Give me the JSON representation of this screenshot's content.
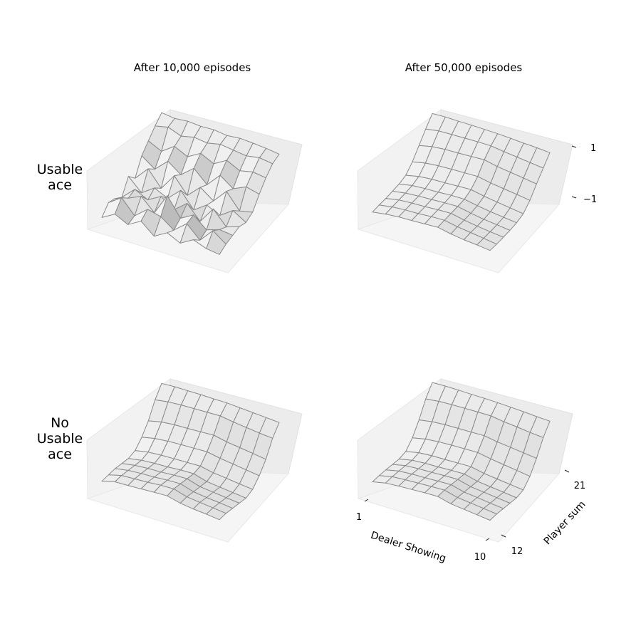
{
  "chart_data": {
    "type": "surface",
    "col_titles": [
      "After 10,000 episodes",
      "After 50,000 episodes"
    ],
    "row_labels": [
      [
        "Usable",
        "ace"
      ],
      [
        "No",
        "Usable",
        "ace"
      ]
    ],
    "x": {
      "label": "Dealer Showing",
      "range": [
        1,
        10
      ],
      "ticks": [
        1,
        10
      ]
    },
    "y": {
      "label": "Player sum",
      "range": [
        12,
        21
      ],
      "ticks": [
        12,
        21
      ]
    },
    "z": {
      "range": [
        -1,
        1
      ],
      "ticks": [
        1,
        -1
      ],
      "tick_labels": [
        "1",
        "−1"
      ]
    },
    "dealer": [
      1,
      2,
      3,
      4,
      5,
      6,
      7,
      8,
      9,
      10
    ],
    "player": [
      12,
      13,
      14,
      15,
      16,
      17,
      18,
      19,
      20,
      21
    ],
    "surfaces": [
      {
        "row": 0,
        "col": 0,
        "z": [
          [
            -0.8,
            -0.55,
            -0.75,
            -0.5,
            -0.85,
            -0.6,
            -0.8,
            -0.55,
            -0.7,
            -0.75
          ],
          [
            -0.5,
            -0.2,
            -0.65,
            -0.3,
            -0.4,
            -0.7,
            -0.35,
            -0.75,
            -0.3,
            -0.6
          ],
          [
            -0.55,
            -0.4,
            -0.2,
            -0.6,
            0.1,
            -0.5,
            -0.25,
            -0.6,
            -0.45,
            -0.5
          ],
          [
            -0.7,
            -0.3,
            -0.5,
            -0.25,
            -0.55,
            -0.2,
            -0.65,
            -0.1,
            -0.55,
            -0.4
          ],
          [
            -0.2,
            -0.6,
            -0.3,
            -0.5,
            -0.1,
            -0.6,
            -0.3,
            -0.5,
            -0.2,
            -0.45
          ],
          [
            -0.45,
            0.0,
            -0.5,
            0.05,
            -0.45,
            -0.05,
            -0.35,
            0.1,
            -0.4,
            -0.3
          ],
          [
            0.1,
            -0.2,
            0.2,
            -0.1,
            0.25,
            -0.15,
            0.3,
            0.0,
            0.2,
            0.1
          ],
          [
            0.4,
            0.2,
            0.5,
            0.3,
            0.55,
            0.35,
            0.6,
            0.4,
            0.5,
            0.45
          ],
          [
            0.7,
            0.8,
            0.65,
            0.75,
            0.7,
            0.8,
            0.75,
            0.7,
            0.78,
            0.72
          ],
          [
            0.95,
            0.9,
            0.95,
            0.92,
            0.95,
            0.9,
            0.95,
            0.93,
            0.9,
            0.85
          ]
        ]
      },
      {
        "row": 0,
        "col": 1,
        "z": [
          [
            -0.62,
            -0.55,
            -0.5,
            -0.48,
            -0.45,
            -0.42,
            -0.5,
            -0.55,
            -0.58,
            -0.62
          ],
          [
            -0.58,
            -0.5,
            -0.46,
            -0.44,
            -0.4,
            -0.38,
            -0.45,
            -0.5,
            -0.55,
            -0.6
          ],
          [
            -0.55,
            -0.46,
            -0.42,
            -0.4,
            -0.36,
            -0.34,
            -0.42,
            -0.48,
            -0.52,
            -0.56
          ],
          [
            -0.5,
            -0.42,
            -0.38,
            -0.35,
            -0.32,
            -0.3,
            -0.38,
            -0.44,
            -0.48,
            -0.52
          ],
          [
            -0.45,
            -0.36,
            -0.32,
            -0.3,
            -0.26,
            -0.25,
            -0.32,
            -0.38,
            -0.42,
            -0.46
          ],
          [
            -0.35,
            -0.25,
            -0.2,
            -0.18,
            -0.15,
            -0.12,
            -0.2,
            -0.25,
            -0.3,
            -0.35
          ],
          [
            -0.1,
            0.0,
            0.05,
            0.08,
            0.1,
            0.12,
            0.05,
            0.0,
            -0.05,
            -0.1
          ],
          [
            0.25,
            0.35,
            0.4,
            0.42,
            0.45,
            0.48,
            0.4,
            0.35,
            0.3,
            0.25
          ],
          [
            0.6,
            0.68,
            0.7,
            0.72,
            0.74,
            0.75,
            0.7,
            0.66,
            0.62,
            0.58
          ],
          [
            0.92,
            0.95,
            0.95,
            0.96,
            0.96,
            0.96,
            0.95,
            0.93,
            0.92,
            0.9
          ]
        ]
      },
      {
        "row": 1,
        "col": 0,
        "z": [
          [
            -0.62,
            -0.5,
            -0.48,
            -0.45,
            -0.42,
            -0.4,
            -0.5,
            -0.55,
            -0.58,
            -0.62
          ],
          [
            -0.6,
            -0.48,
            -0.45,
            -0.42,
            -0.38,
            -0.36,
            -0.48,
            -0.52,
            -0.56,
            -0.6
          ],
          [
            -0.58,
            -0.5,
            -0.46,
            -0.44,
            -0.4,
            -0.38,
            -0.5,
            -0.55,
            -0.58,
            -0.62
          ],
          [
            -0.6,
            -0.52,
            -0.48,
            -0.46,
            -0.42,
            -0.4,
            -0.52,
            -0.56,
            -0.6,
            -0.64
          ],
          [
            -0.62,
            -0.54,
            -0.5,
            -0.48,
            -0.44,
            -0.42,
            -0.54,
            -0.58,
            -0.62,
            -0.66
          ],
          [
            -0.55,
            -0.46,
            -0.42,
            -0.4,
            -0.38,
            -0.36,
            -0.44,
            -0.48,
            -0.52,
            -0.56
          ],
          [
            -0.3,
            -0.2,
            -0.15,
            -0.12,
            -0.1,
            -0.08,
            -0.15,
            -0.2,
            -0.25,
            -0.3
          ],
          [
            0.05,
            0.15,
            0.2,
            0.22,
            0.25,
            0.28,
            0.2,
            0.15,
            0.1,
            0.05
          ],
          [
            0.55,
            0.62,
            0.66,
            0.68,
            0.7,
            0.72,
            0.66,
            0.62,
            0.58,
            0.55
          ],
          [
            0.9,
            0.93,
            0.94,
            0.95,
            0.95,
            0.96,
            0.94,
            0.92,
            0.9,
            0.88
          ]
        ]
      },
      {
        "row": 1,
        "col": 1,
        "z": [
          [
            -0.64,
            -0.54,
            -0.5,
            -0.47,
            -0.44,
            -0.42,
            -0.52,
            -0.56,
            -0.6,
            -0.64
          ],
          [
            -0.62,
            -0.52,
            -0.48,
            -0.45,
            -0.42,
            -0.4,
            -0.5,
            -0.54,
            -0.58,
            -0.62
          ],
          [
            -0.62,
            -0.52,
            -0.48,
            -0.46,
            -0.43,
            -0.41,
            -0.51,
            -0.55,
            -0.59,
            -0.63
          ],
          [
            -0.63,
            -0.53,
            -0.49,
            -0.47,
            -0.44,
            -0.42,
            -0.52,
            -0.56,
            -0.6,
            -0.64
          ],
          [
            -0.64,
            -0.54,
            -0.5,
            -0.48,
            -0.45,
            -0.43,
            -0.53,
            -0.57,
            -0.61,
            -0.65
          ],
          [
            -0.58,
            -0.48,
            -0.44,
            -0.42,
            -0.4,
            -0.38,
            -0.46,
            -0.5,
            -0.54,
            -0.58
          ],
          [
            -0.32,
            -0.22,
            -0.17,
            -0.14,
            -0.12,
            -0.1,
            -0.17,
            -0.22,
            -0.27,
            -0.32
          ],
          [
            0.08,
            0.16,
            0.2,
            0.22,
            0.24,
            0.26,
            0.2,
            0.16,
            0.12,
            0.08
          ],
          [
            0.58,
            0.64,
            0.67,
            0.69,
            0.71,
            0.72,
            0.67,
            0.64,
            0.6,
            0.57
          ],
          [
            0.93,
            0.95,
            0.96,
            0.96,
            0.97,
            0.97,
            0.96,
            0.95,
            0.93,
            0.92
          ]
        ]
      }
    ]
  }
}
